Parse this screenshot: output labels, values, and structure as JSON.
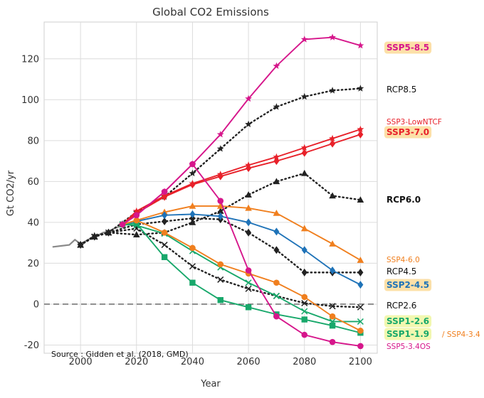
{
  "chart_data": {
    "type": "line",
    "title": "Global CO2 Emissions",
    "xlabel": "Year",
    "ylabel": "Gt CO2/yr",
    "xlim": [
      1987,
      2106
    ],
    "ylim": [
      -24,
      138
    ],
    "xticks": [
      2000,
      2020,
      2040,
      2060,
      2080,
      2100
    ],
    "yticks": [
      -20,
      0,
      20,
      40,
      60,
      80,
      100,
      120
    ],
    "grid": true,
    "source": "Source : Gidden et al. (2018, GMD)",
    "historical": {
      "name": "Historical",
      "x": [
        1990,
        1993,
        1996,
        1998,
        2000,
        2002,
        2004,
        2006,
        2008,
        2010,
        2012,
        2014,
        2015
      ],
      "y": [
        28,
        28.5,
        29,
        31.5,
        29.5,
        31,
        32.5,
        33.5,
        35,
        35.5,
        37,
        38,
        39
      ]
    },
    "series": [
      {
        "name": "SSP5-8.5",
        "color": "#d6168b",
        "style": "solid",
        "marker": "star",
        "x": [
          2015,
          2020,
          2030,
          2040,
          2050,
          2060,
          2070,
          2080,
          2090,
          2100
        ],
        "y": [
          39,
          43.5,
          55,
          68.5,
          83,
          100.5,
          116.5,
          129.5,
          130.5,
          126.5
        ]
      },
      {
        "name": "RCP8.5",
        "color": "#222222",
        "style": "dotted",
        "marker": "star",
        "x": [
          2000,
          2005,
          2010,
          2020,
          2030,
          2040,
          2050,
          2060,
          2070,
          2080,
          2090,
          2100
        ],
        "y": [
          29,
          33.5,
          35,
          45,
          52.5,
          64,
          76,
          88,
          96.5,
          101.5,
          104.5,
          105.5
        ]
      },
      {
        "name": "SSP3-LowNTCF",
        "color": "#e8212a",
        "style": "solid",
        "marker": "star",
        "x": [
          2015,
          2020,
          2030,
          2040,
          2050,
          2060,
          2070,
          2080,
          2090,
          2100
        ],
        "y": [
          39,
          45.5,
          53,
          59,
          63.5,
          68,
          72,
          76.5,
          81,
          85.5
        ]
      },
      {
        "name": "SSP3-7.0",
        "color": "#e8212a",
        "style": "solid",
        "marker": "diamond",
        "x": [
          2015,
          2020,
          2030,
          2040,
          2050,
          2060,
          2070,
          2080,
          2090,
          2100
        ],
        "y": [
          39,
          44.5,
          52.5,
          58.5,
          62.5,
          66.5,
          70,
          74,
          78.5,
          83
        ]
      },
      {
        "name": "RCP6.0",
        "color": "#222222",
        "style": "dotted",
        "marker": "triangle",
        "x": [
          2000,
          2005,
          2010,
          2020,
          2030,
          2040,
          2050,
          2060,
          2070,
          2080,
          2090,
          2100
        ],
        "y": [
          29,
          33,
          35,
          34,
          35,
          40,
          45.5,
          53.5,
          60,
          64,
          53,
          51
        ]
      },
      {
        "name": "SSP4-6.0",
        "color": "#f07f1e",
        "style": "solid",
        "marker": "triangle",
        "x": [
          2015,
          2020,
          2030,
          2040,
          2050,
          2060,
          2070,
          2080,
          2090,
          2100
        ],
        "y": [
          39,
          41,
          45,
          48,
          48,
          47,
          44.5,
          37,
          29.5,
          21.5
        ]
      },
      {
        "name": "RCP4.5",
        "color": "#222222",
        "style": "dotted",
        "marker": "diamond",
        "x": [
          2000,
          2005,
          2010,
          2020,
          2030,
          2040,
          2050,
          2060,
          2070,
          2080,
          2090,
          2100
        ],
        "y": [
          29,
          33,
          35,
          39,
          40.5,
          42,
          41.5,
          35,
          26.5,
          15.5,
          15.5,
          15.5
        ]
      },
      {
        "name": "SSP2-4.5",
        "color": "#1f73b8",
        "style": "solid",
        "marker": "diamond",
        "x": [
          2015,
          2020,
          2030,
          2040,
          2050,
          2060,
          2070,
          2080,
          2090,
          2100
        ],
        "y": [
          39,
          40.5,
          43.5,
          44,
          43,
          40,
          35.5,
          26.5,
          16.5,
          9.5
        ]
      },
      {
        "name": "RCP2.6",
        "color": "#222222",
        "style": "dotted",
        "marker": "x",
        "x": [
          2000,
          2005,
          2010,
          2020,
          2030,
          2040,
          2050,
          2060,
          2070,
          2080,
          2090,
          2100
        ],
        "y": [
          29,
          33,
          35,
          37,
          29,
          18.5,
          12,
          7.5,
          4,
          0.5,
          -1,
          -1.5
        ]
      },
      {
        "name": "SSP1-2.6",
        "color": "#18a86b",
        "style": "solid",
        "marker": "x",
        "x": [
          2015,
          2020,
          2030,
          2040,
          2050,
          2060,
          2070,
          2080,
          2090,
          2100
        ],
        "y": [
          39,
          38.5,
          34.5,
          26,
          18,
          10.5,
          4,
          -3.5,
          -8.5,
          -8.5
        ]
      },
      {
        "name": "SSP1-1.9",
        "color": "#18a86b",
        "style": "solid",
        "marker": "square",
        "x": [
          2015,
          2020,
          2030,
          2040,
          2050,
          2060,
          2070,
          2080,
          2090,
          2100
        ],
        "y": [
          39,
          39.5,
          23,
          10.5,
          2,
          -1.5,
          -5,
          -7.5,
          -10.5,
          -14
        ]
      },
      {
        "name": "SSP4-3.4",
        "color": "#f07f1e",
        "style": "solid",
        "marker": "circle",
        "x": [
          2015,
          2020,
          2030,
          2040,
          2050,
          2060,
          2070,
          2080,
          2090,
          2100
        ],
        "y": [
          39,
          41,
          35,
          27.5,
          19.5,
          15,
          10.5,
          3.5,
          -6,
          -13
        ]
      },
      {
        "name": "SSP5-3.4OS",
        "color": "#d6168b",
        "style": "solid",
        "marker": "circle",
        "x": [
          2015,
          2020,
          2030,
          2040,
          2050,
          2060,
          2070,
          2080,
          2090,
          2100
        ],
        "y": [
          39,
          43.5,
          55,
          68.5,
          50.5,
          16.5,
          -6,
          -15,
          -18.5,
          -20.5
        ]
      }
    ],
    "zero_line": {
      "y": 0,
      "style": "dashed",
      "color": "#777777"
    },
    "labels": [
      {
        "text": "SSP5-8.5",
        "color": "#d6168b",
        "highlight": "#fce0a8",
        "bold": true
      },
      {
        "text": "RCP8.5",
        "color": "#111111",
        "highlight": null,
        "bold": false
      },
      {
        "text": "SSP3-LowNTCF",
        "color": "#e8212a",
        "highlight": null,
        "bold": false,
        "small": true
      },
      {
        "text": "SSP3-7.0",
        "color": "#e8212a",
        "highlight": "#fce0a8",
        "bold": true
      },
      {
        "text": "RCP6.0",
        "color": "#111111",
        "highlight": null,
        "bold": true
      },
      {
        "text": "SSP4-6.0",
        "color": "#f07f1e",
        "highlight": null,
        "bold": false,
        "small": true
      },
      {
        "text": "RCP4.5",
        "color": "#111111",
        "highlight": null,
        "bold": false
      },
      {
        "text": "SSP2-4.5",
        "color": "#1f73b8",
        "highlight": "#fce0a8",
        "bold": true
      },
      {
        "text": "RCP2.6",
        "color": "#111111",
        "highlight": null,
        "bold": false
      },
      {
        "text": "SSP1-2.6",
        "color": "#18a86b",
        "highlight": "#f2f7b0",
        "bold": true
      },
      {
        "text": "SSP1-1.9",
        "color": "#18a86b",
        "highlight": "#f2f7b0",
        "bold": true
      },
      {
        "text": "/ SSP4-3.4",
        "color": "#f07f1e",
        "highlight": null,
        "bold": false,
        "small": true
      },
      {
        "text": "SSP5-3.4OS",
        "color": "#d6168b",
        "highlight": null,
        "bold": false,
        "small": true
      }
    ]
  }
}
